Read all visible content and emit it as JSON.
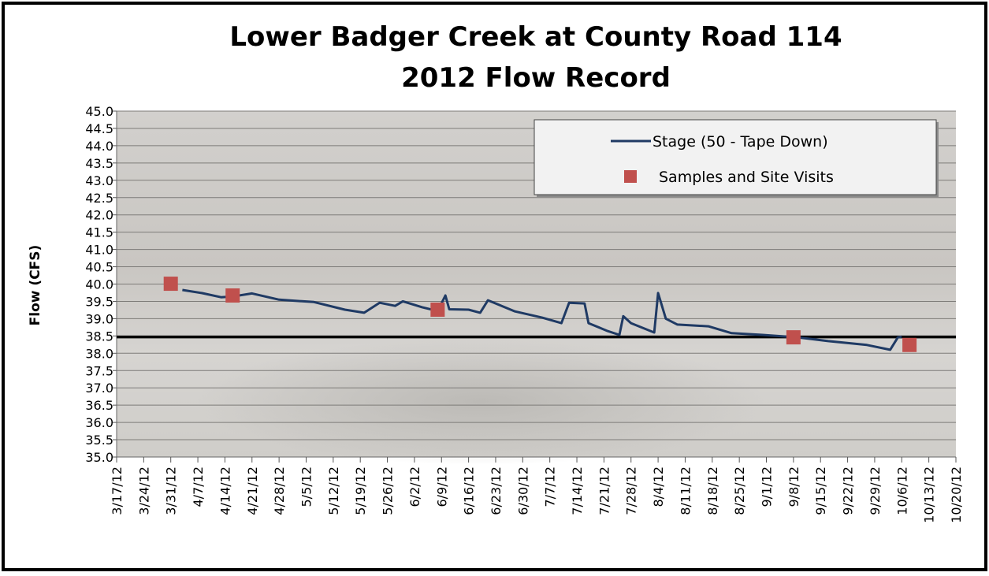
{
  "chart_data": {
    "type": "line",
    "title": "Lower Badger Creek at County Road 114",
    "subtitle": "2012 Flow Record",
    "y_label": "Flow (CFS)",
    "ylim": [
      35,
      45
    ],
    "yticks": [
      {
        "value": 35,
        "label": "35.0"
      },
      35.5,
      {
        "value": 36,
        "label": "36.0"
      },
      36.5,
      {
        "value": 37,
        "label": "37.0"
      },
      37.5,
      {
        "value": 38,
        "label": "38.0"
      },
      38.5,
      {
        "value": 39,
        "label": "39.0"
      },
      39.5,
      {
        "value": 40,
        "label": "40.0"
      },
      40.5,
      {
        "value": 41,
        "label": "41.0"
      },
      41.5,
      {
        "value": 42,
        "label": "42.0"
      },
      42.5,
      {
        "value": 43,
        "label": "43.0"
      },
      43.5,
      {
        "value": 44,
        "label": "44.0"
      },
      44.5,
      {
        "value": 45,
        "label": "45.0"
      }
    ],
    "xlim": [
      "3/17/12",
      "10/20/12"
    ],
    "xticks": [
      "3/17/12",
      "3/24/12",
      "3/31/12",
      "4/7/12",
      "4/14/12",
      "4/21/12",
      "4/28/12",
      "5/5/12",
      "5/12/12",
      "5/19/12",
      "5/26/12",
      "6/2/12",
      "6/9/12",
      "6/16/12",
      "6/23/12",
      "6/30/12",
      "7/7/12",
      "7/14/12",
      "7/21/12",
      "7/28/12",
      "8/4/12",
      "8/11/12",
      "8/18/12",
      "8/25/12",
      "9/1/12",
      "9/8/12",
      "9/15/12",
      "9/22/12",
      "9/29/12",
      "10/6/12",
      "10/13/12",
      "10/20/12"
    ],
    "grid": true,
    "legend": "upper right",
    "reference_line": {
      "value": 38.47,
      "color": "#000000"
    },
    "series": [
      {
        "name": "Stage (50 - Tape Down)",
        "color": "#1f3a64",
        "kind": "line",
        "x": [
          "4/3/12",
          "4/8/12",
          "4/13/12",
          "4/16/12",
          "4/21/12",
          "4/28/12",
          "5/7/12",
          "5/15/12",
          "5/20/12",
          "5/24/12",
          "5/28/12",
          "5/30/12",
          "6/4/12",
          "6/8/12",
          "6/10/12",
          "6/11/12",
          "6/16/12",
          "6/19/12",
          "6/21/12",
          "6/28/12",
          "7/5/12",
          "7/10/12",
          "7/12/12",
          "7/16/12",
          "7/17/12",
          "7/22/12",
          "7/25/12",
          "7/26/12",
          "7/28/12",
          "8/3/12",
          "8/4/12",
          "8/6/12",
          "8/9/12",
          "8/17/12",
          "8/23/12",
          "8/31/12",
          "9/9/12",
          "9/17/12",
          "9/27/12",
          "10/3/12",
          "10/5/12",
          "10/6/12"
        ],
        "values": [
          39.83,
          39.74,
          39.62,
          39.64,
          39.73,
          39.55,
          39.48,
          39.26,
          39.17,
          39.46,
          39.37,
          39.5,
          39.33,
          39.22,
          39.67,
          39.27,
          39.26,
          39.17,
          39.53,
          39.21,
          39.03,
          38.87,
          39.46,
          39.44,
          38.87,
          38.64,
          38.53,
          39.07,
          38.87,
          38.6,
          39.74,
          39.0,
          38.83,
          38.78,
          38.58,
          38.53,
          38.46,
          38.35,
          38.24,
          38.1,
          38.46,
          38.48
        ]
      },
      {
        "name": "Samples and Site Visits",
        "color": "#c0504d",
        "kind": "marker",
        "x": [
          "3/31/12",
          "4/16/12",
          "6/8/12",
          "9/8/12",
          "10/8/12"
        ],
        "values": [
          40.01,
          39.67,
          39.26,
          38.46,
          38.24
        ]
      }
    ]
  }
}
